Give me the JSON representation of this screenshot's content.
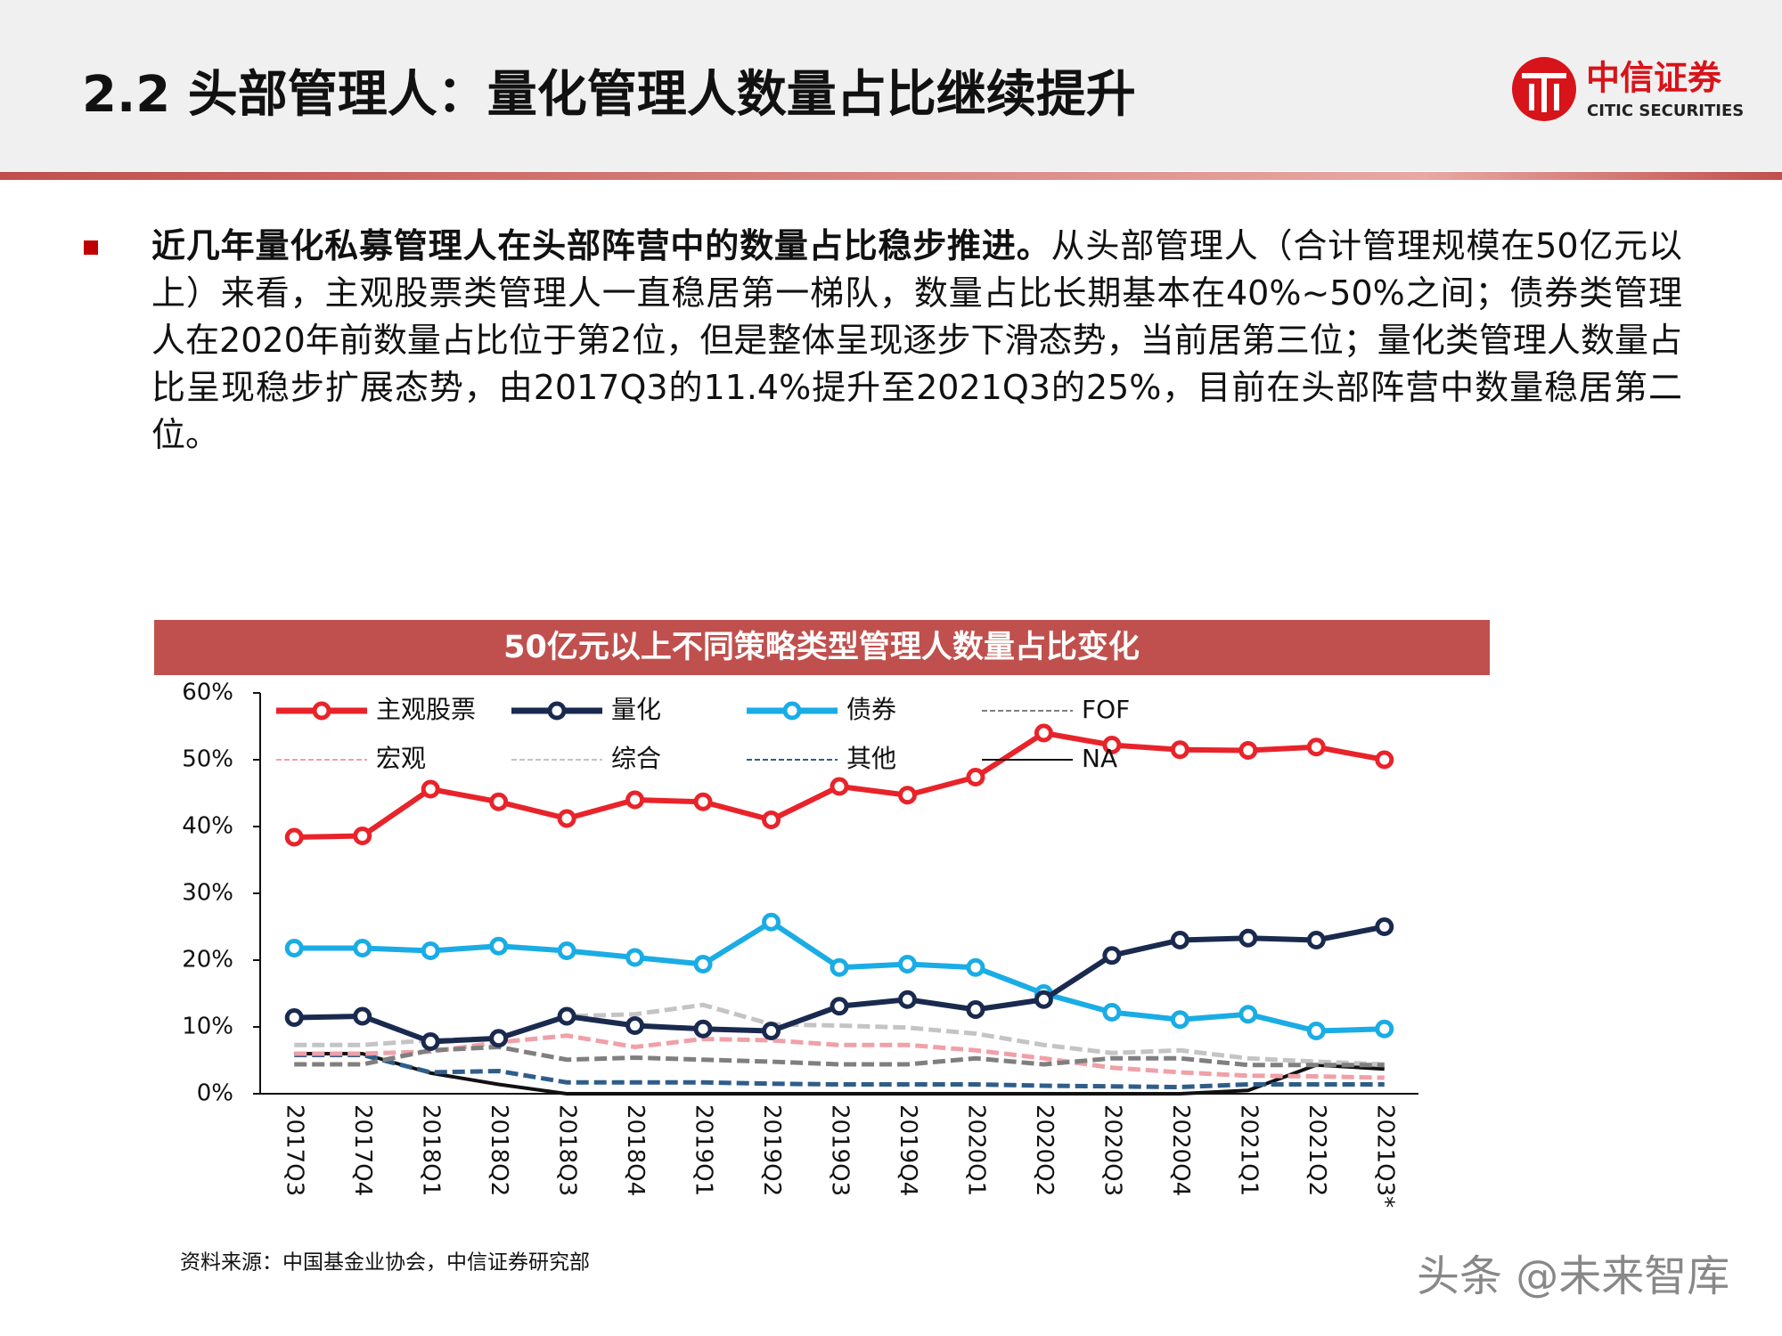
{
  "header": {
    "title": "2.2 头部管理人：量化管理人数量占比继续提升",
    "logo_cn": "中信证券",
    "logo_en": "CITIC SECURITIES"
  },
  "paragraph": {
    "lead": "近几年量化私募管理人在头部阵营中的数量占比稳步推进。",
    "body": "从头部管理人（合计管理规模在50亿元以上）来看，主观股票类管理人一直稳居第一梯队，数量占比长期基本在40%~50%之间；债券类管理人在2020年前数量占比位于第2位，但是整体呈现逐步下滑态势，当前居第三位；量化类管理人数量占比呈现稳步扩展态势，由2017Q3的11.4%提升至2021Q3的25%，目前在头部阵营中数量稳居第二位。"
  },
  "chart_data": {
    "type": "line",
    "title": "50亿元以上不同策略类型管理人数量占比变化",
    "categories": [
      "2017Q3",
      "2017Q4",
      "2018Q1",
      "2018Q2",
      "2018Q3",
      "2018Q4",
      "2019Q1",
      "2019Q2",
      "2019Q3",
      "2019Q4",
      "2020Q1",
      "2020Q2",
      "2020Q3",
      "2020Q4",
      "2021Q1",
      "2021Q2",
      "2021Q3*"
    ],
    "ylim": [
      0,
      60
    ],
    "yticks": [
      {
        "value": 0,
        "label": "0%"
      },
      {
        "value": 10,
        "label": "10%"
      },
      {
        "value": 20,
        "label": "20%"
      },
      {
        "value": 30,
        "label": "30%"
      },
      {
        "value": 40,
        "label": "40%"
      },
      {
        "value": 50,
        "label": "50%"
      },
      {
        "value": 60,
        "label": "60%"
      }
    ],
    "series": [
      {
        "name": "主观股票",
        "color": "#e8232a",
        "style": "solid",
        "markers": true,
        "values": [
          38.4,
          38.6,
          45.6,
          43.7,
          41.2,
          44.0,
          43.7,
          41.0,
          46.0,
          44.7,
          47.4,
          54.0,
          52.2,
          51.5,
          51.4,
          51.9,
          50.0
        ]
      },
      {
        "name": "量化",
        "color": "#1a2a4f",
        "style": "solid",
        "markers": true,
        "values": [
          11.4,
          11.6,
          7.8,
          8.3,
          11.6,
          10.2,
          9.7,
          9.4,
          13.1,
          14.1,
          12.6,
          14.1,
          20.7,
          23.0,
          23.3,
          23.0,
          25.0
        ]
      },
      {
        "name": "债券",
        "color": "#1aace5",
        "style": "solid",
        "markers": true,
        "values": [
          21.8,
          21.8,
          21.4,
          22.1,
          21.4,
          20.4,
          19.4,
          25.7,
          18.9,
          19.4,
          18.9,
          15.0,
          12.2,
          11.1,
          11.9,
          9.4,
          9.7
        ]
      },
      {
        "name": "FOF",
        "color": "#7f7f7f",
        "style": "dashed",
        "markers": false,
        "values": [
          4.4,
          4.4,
          6.5,
          7.0,
          5.1,
          5.4,
          5.1,
          4.8,
          4.4,
          4.4,
          5.3,
          4.4,
          5.3,
          5.3,
          4.3,
          4.3,
          4.3
        ]
      },
      {
        "name": "宏观",
        "color": "#f0a0a8",
        "style": "dashed",
        "markers": false,
        "values": [
          6.0,
          6.0,
          6.3,
          7.7,
          8.7,
          7.0,
          8.2,
          8.0,
          7.3,
          7.3,
          6.5,
          5.3,
          3.9,
          3.2,
          2.7,
          2.6,
          2.4
        ]
      },
      {
        "name": "综合",
        "color": "#c4c4c4",
        "style": "dashed",
        "markers": false,
        "values": [
          7.3,
          7.3,
          8.0,
          8.3,
          11.6,
          11.9,
          13.3,
          10.4,
          10.2,
          9.9,
          9.0,
          7.3,
          6.1,
          6.5,
          5.3,
          4.8,
          4.4
        ]
      },
      {
        "name": "其他",
        "color": "#2f5d8a",
        "style": "dashed",
        "markers": false,
        "values": [
          5.8,
          5.8,
          3.2,
          3.4,
          1.7,
          1.7,
          1.7,
          1.5,
          1.4,
          1.4,
          1.4,
          1.2,
          1.1,
          1.0,
          1.4,
          1.4,
          1.4
        ]
      },
      {
        "name": "NA",
        "color": "#111111",
        "style": "solid",
        "markers": false,
        "values": [
          6.0,
          6.0,
          3.1,
          1.4,
          0,
          0,
          0,
          0,
          0,
          0,
          0,
          0,
          0,
          0,
          0.5,
          4.3,
          3.7
        ]
      }
    ]
  },
  "source": "资料来源：中国基金业协会，中信证券研究部",
  "watermark": "头条 @未来智库"
}
